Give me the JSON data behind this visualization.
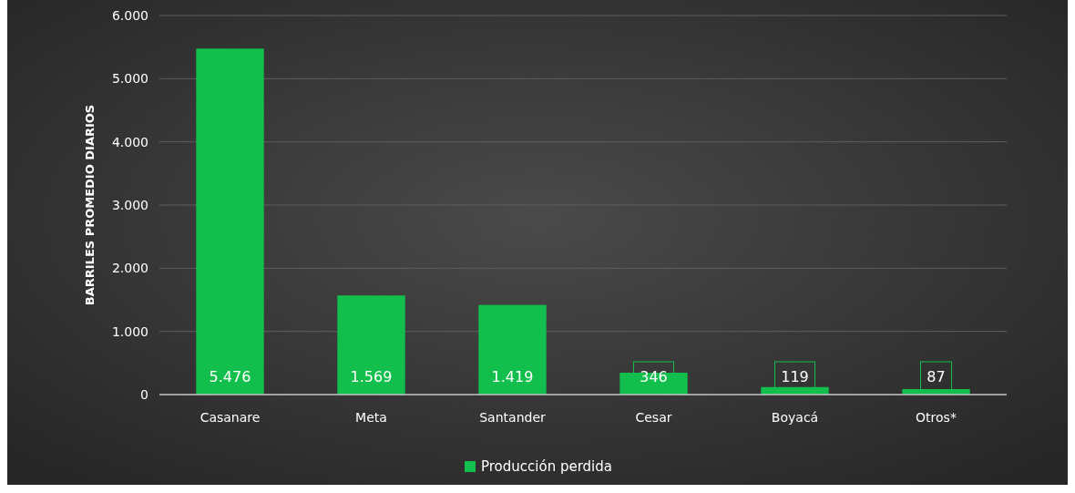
{
  "chart_data": {
    "type": "bar",
    "ylabel": "BARRILES PROMEDIO DIARIOS",
    "categories": [
      "Casanare",
      "Meta",
      "Santander",
      "Cesar",
      "Boyacá",
      "Otros*"
    ],
    "series": [
      {
        "name": "Producción perdida",
        "color": "#12bf4c",
        "values": [
          5476,
          1569,
          1419,
          346,
          119,
          87
        ]
      }
    ],
    "value_labels": [
      "5.476",
      "1.569",
      "1.419",
      "346",
      "119",
      "87"
    ],
    "ylim": [
      0,
      6000
    ],
    "yticks": [
      0,
      {
        "value": 1000,
        "label": "1.000"
      },
      {
        "value": 2000,
        "label": "2.000"
      },
      {
        "value": 3000,
        "label": "3.000"
      },
      {
        "value": 4000,
        "label": "4.000"
      },
      {
        "value": 5000,
        "label": "5.000"
      },
      {
        "value": 6000,
        "label": "6.000"
      }
    ],
    "grid": "y",
    "legend": "bottom"
  }
}
